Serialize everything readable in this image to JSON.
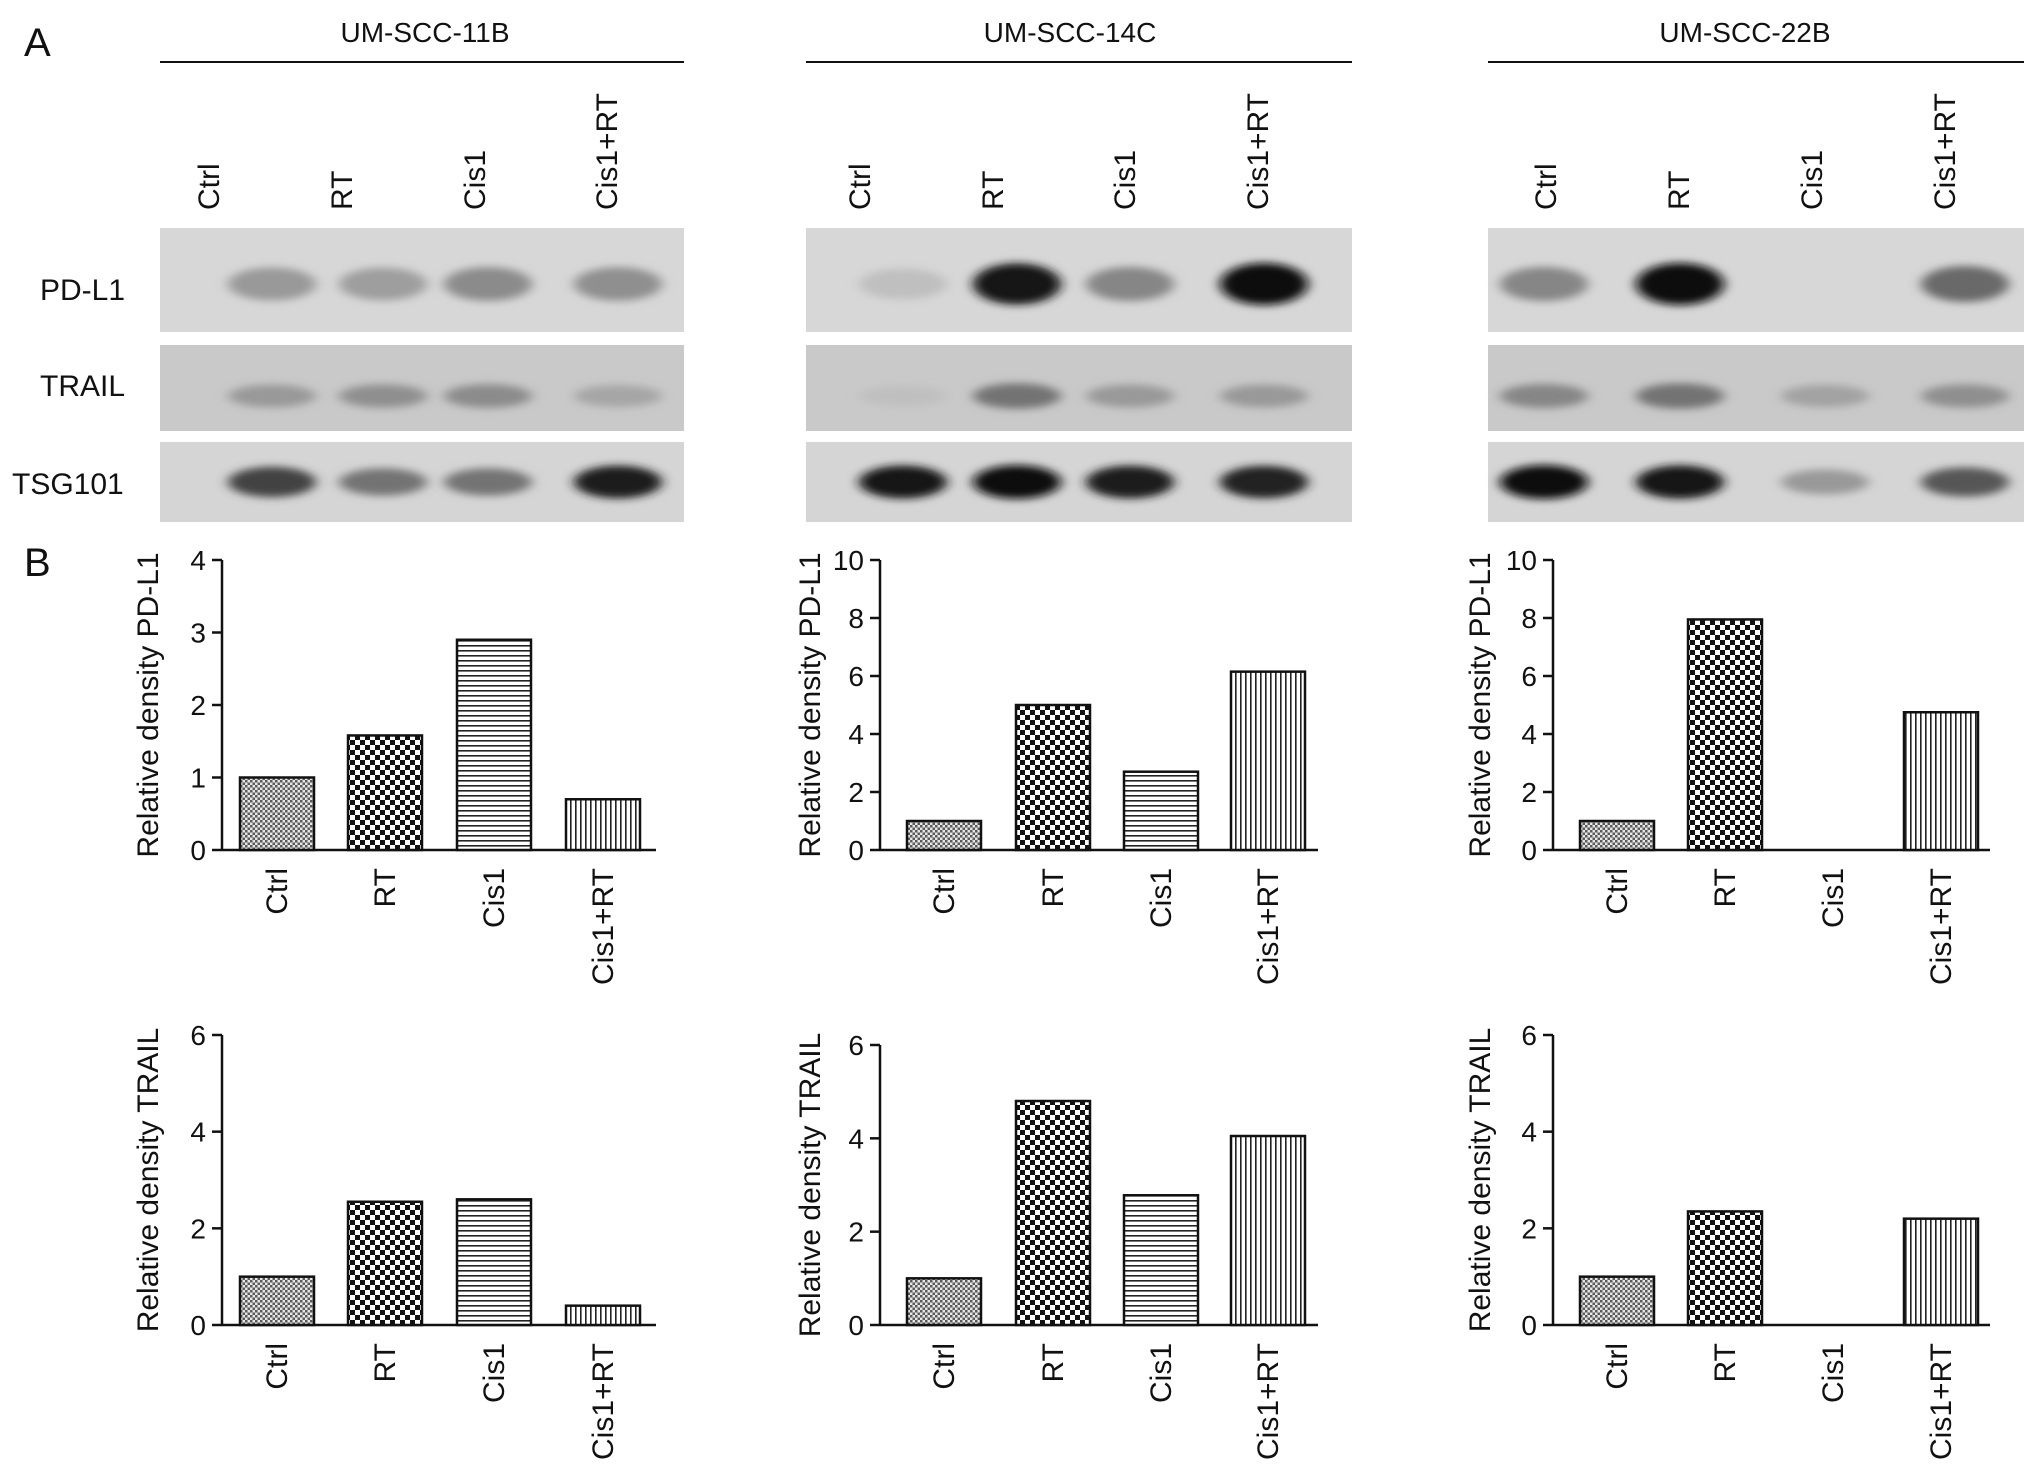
{
  "figure": {
    "panel_a_label": "A",
    "panel_b_label": "B",
    "background_color": "#ffffff",
    "ink_color": "#111111"
  },
  "cell_lines": [
    "UM-SCC-11B",
    "UM-SCC-14C",
    "UM-SCC-22B"
  ],
  "western_blot": {
    "lane_labels": [
      "Ctrl",
      "RT",
      "Cis1",
      "Cis1+RT"
    ],
    "rows": [
      "PD-L1",
      "TRAIL",
      "TSG101"
    ],
    "band_darkness": {
      "UM-SCC-11B": {
        "PD-L1": [
          0.25,
          0.22,
          0.32,
          0.3
        ],
        "TRAIL": [
          0.25,
          0.3,
          0.32,
          0.18
        ],
        "TSG101": [
          0.7,
          0.45,
          0.45,
          0.9
        ]
      },
      "UM-SCC-14C": {
        "PD-L1": [
          0.05,
          0.95,
          0.35,
          1.0
        ],
        "TRAIL": [
          0.05,
          0.45,
          0.25,
          0.25
        ],
        "TSG101": [
          0.92,
          0.98,
          0.9,
          0.88
        ]
      },
      "UM-SCC-22B": {
        "PD-L1": [
          0.35,
          1.0,
          0.0,
          0.5
        ],
        "TRAIL": [
          0.35,
          0.45,
          0.2,
          0.3
        ],
        "TSG101": [
          1.0,
          0.95,
          0.25,
          0.6
        ]
      }
    }
  },
  "chart_data": [
    {
      "type": "bar",
      "cell_line": "UM-SCC-11B",
      "categories": [
        "Ctrl",
        "RT",
        "Cis1",
        "Cis1+RT"
      ],
      "values": [
        1.0,
        1.58,
        2.9,
        0.7
      ],
      "ylabel": "Relative density PD-L1",
      "ylim": [
        0,
        4
      ],
      "yticks": [
        0,
        1,
        2,
        3,
        4
      ]
    },
    {
      "type": "bar",
      "cell_line": "UM-SCC-14C",
      "categories": [
        "Ctrl",
        "RT",
        "Cis1",
        "Cis1+RT"
      ],
      "values": [
        1.0,
        5.0,
        2.7,
        6.15
      ],
      "ylabel": "Relative density PD-L1",
      "ylim": [
        0,
        10
      ],
      "yticks": [
        0,
        2,
        4,
        6,
        8,
        10
      ]
    },
    {
      "type": "bar",
      "cell_line": "UM-SCC-22B",
      "categories": [
        "Ctrl",
        "RT",
        "Cis1",
        "Cis1+RT"
      ],
      "values": [
        1.0,
        7.95,
        0,
        4.75
      ],
      "ylabel": "Relative density PD-L1",
      "ylim": [
        0,
        10
      ],
      "yticks": [
        0,
        2,
        4,
        6,
        8,
        10
      ]
    },
    {
      "type": "bar",
      "cell_line": "UM-SCC-11B",
      "categories": [
        "Ctrl",
        "RT",
        "Cis1",
        "Cis1+RT"
      ],
      "values": [
        1.0,
        2.55,
        2.6,
        0.4
      ],
      "ylabel": "Relative density TRAIL",
      "ylim": [
        0,
        6
      ],
      "yticks": [
        0,
        2,
        4,
        6
      ]
    },
    {
      "type": "bar",
      "cell_line": "UM-SCC-14C",
      "categories": [
        "Ctrl",
        "RT",
        "Cis1",
        "Cis1+RT"
      ],
      "values": [
        1.0,
        4.8,
        2.78,
        4.05
      ],
      "ylabel": "Relative density TRAIL",
      "ylim": [
        0,
        6
      ],
      "yticks": [
        0,
        2,
        4,
        6
      ]
    },
    {
      "type": "bar",
      "cell_line": "UM-SCC-22B",
      "categories": [
        "Ctrl",
        "RT",
        "Cis1",
        "Cis1+RT"
      ],
      "values": [
        1.0,
        2.35,
        0,
        2.2
      ],
      "ylabel": "Relative density TRAIL",
      "ylim": [
        0,
        6
      ],
      "yticks": [
        0,
        2,
        4,
        6
      ]
    }
  ]
}
